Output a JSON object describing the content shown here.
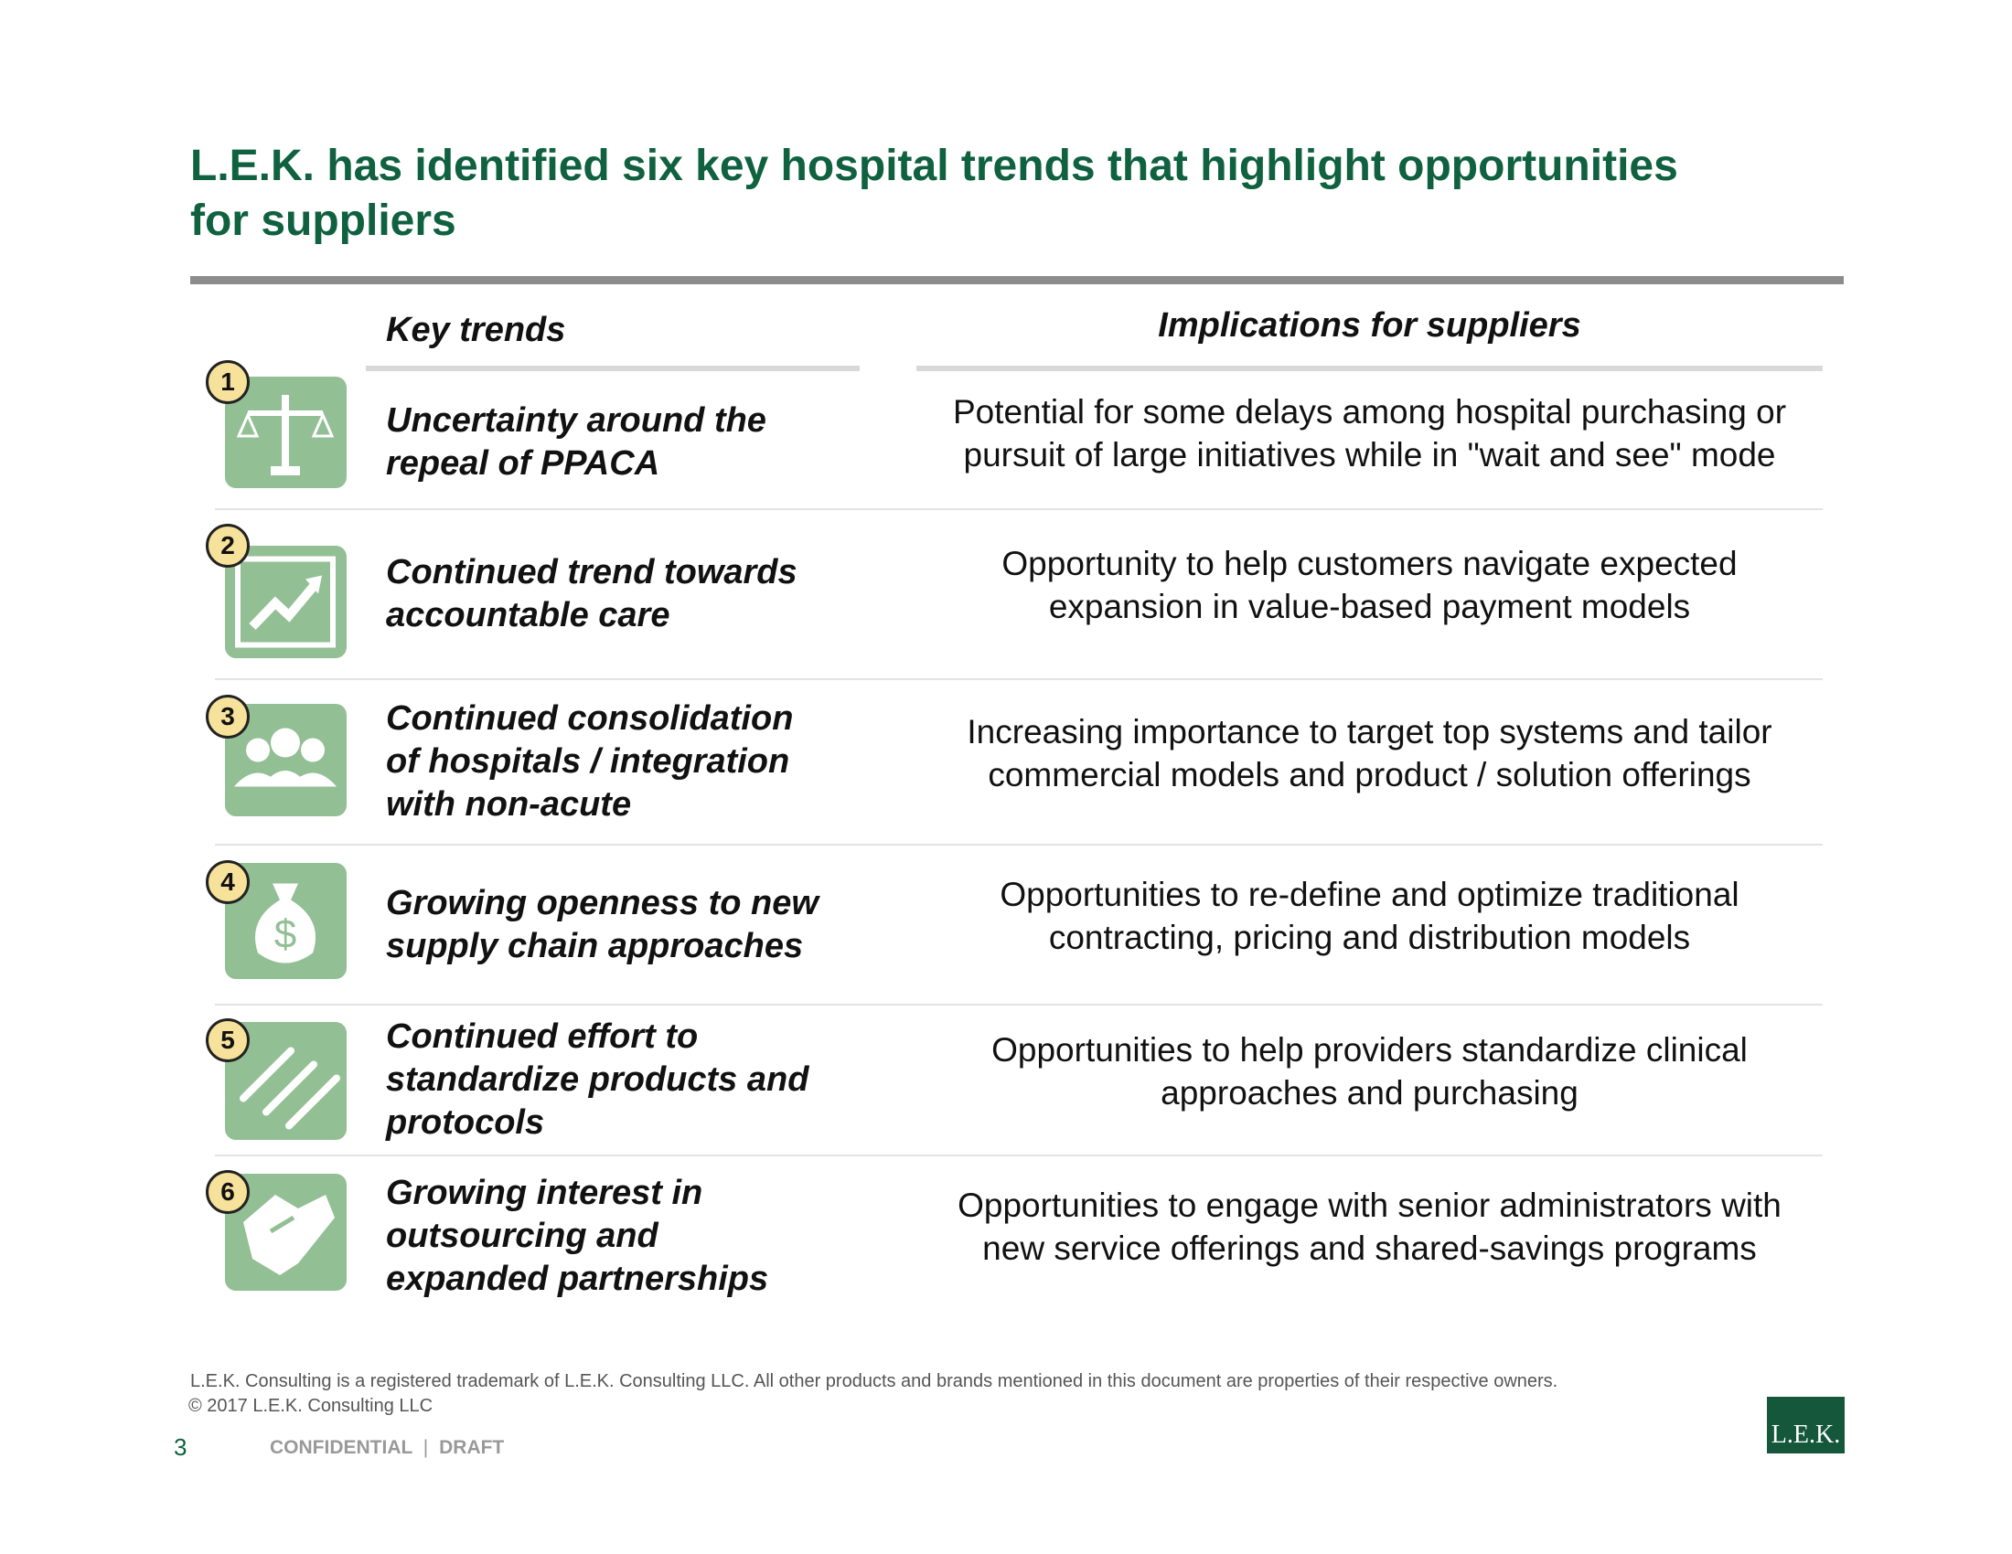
{
  "header": {
    "title_lines": [
      "L.E.K. has identified six key hospital trends that highlight opportunities",
      "for suppliers"
    ]
  },
  "table": {
    "columns": [
      "Key trends",
      "Implications for suppliers"
    ],
    "rows": [
      {
        "number": "1",
        "trend": [
          "Uncertainty around the",
          "repeal of PPACA"
        ],
        "implication": [
          "Potential for some delays among hospital purchasing or",
          "pursuit of large initiatives while in \"wait and see\" mode"
        ]
      },
      {
        "number": "2",
        "trend": [
          "Continued trend towards",
          "accountable care"
        ],
        "implication": [
          "Opportunity to help customers navigate expected",
          "expansion in value-based payment models"
        ]
      },
      {
        "number": "3",
        "trend": [
          "Continued consolidation",
          "of hospitals / integration",
          "with non-acute"
        ],
        "implication": [
          "Increasing importance to target top systems and tailor",
          "commercial models and product / solution offerings"
        ]
      },
      {
        "number": "4",
        "trend": [
          "Growing openness to new",
          "supply chain approaches"
        ],
        "implication": [
          "Opportunities to re-define and optimize traditional",
          "contracting, pricing and distribution models"
        ]
      },
      {
        "number": "5",
        "trend": [
          "Continued effort to",
          "standardize products and",
          "protocols"
        ],
        "implication": [
          "Opportunities to help providers standardize clinical",
          "approaches and purchasing"
        ]
      },
      {
        "number": "6",
        "trend": [
          "Growing interest in",
          "outsourcing and",
          "expanded partnerships"
        ],
        "implication": [
          "Opportunities to engage with senior administrators with",
          "new service offerings and shared-savings programs"
        ]
      }
    ]
  },
  "footer": {
    "trademark": "L.E.K. Consulting is a registered trademark of L.E.K. Consulting LLC. All other products and brands mentioned in this document are properties of their respective owners.",
    "copyright": "© 2017 L.E.K. Consulting LLC",
    "page_number": "3",
    "confidential": "CONFIDENTIAL",
    "separator": "|",
    "draft": "DRAFT",
    "logo": "L.E.K."
  }
}
